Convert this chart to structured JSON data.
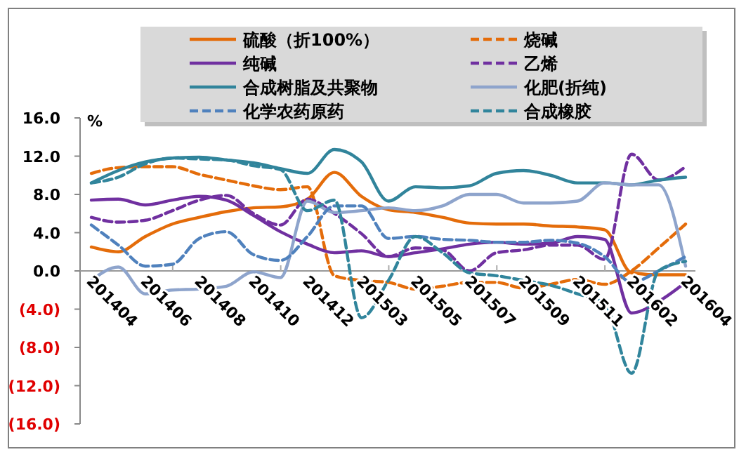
{
  "chart_data": {
    "type": "line",
    "ylabel": "%",
    "categories": [
      "201404",
      null,
      "201406",
      null,
      "201408",
      null,
      "201410",
      null,
      "201412",
      null,
      "201503",
      null,
      "201505",
      null,
      "201507",
      null,
      "201509",
      null,
      "201511",
      null,
      "201602",
      null,
      "201604"
    ],
    "series": [
      {
        "name": "硫酸（折100%）",
        "color": "#e46c0a",
        "line_style": "solid",
        "values": [
          2.5,
          2.0,
          3.6,
          4.9,
          5.6,
          6.2,
          6.6,
          6.7,
          7.5,
          10.3,
          7.8,
          6.4,
          6.1,
          5.6,
          5.0,
          4.9,
          4.9,
          4.7,
          4.6,
          4.3,
          -0.2,
          -0.4,
          -0.4
        ]
      },
      {
        "name": "烧碱",
        "color": "#e46c0a",
        "line_style": "dashed",
        "values": [
          10.2,
          10.8,
          10.9,
          10.9,
          10.1,
          9.5,
          8.9,
          8.5,
          8.8,
          -0.5,
          -1.0,
          -1.2,
          -1.9,
          -1.6,
          -1.2,
          -1.2,
          -1.8,
          -1.4,
          -0.9,
          -1.4,
          0.0,
          2.4,
          4.9
        ]
      },
      {
        "name": "纯碱",
        "color": "#7030a0",
        "line_style": "solid",
        "values": [
          7.4,
          7.5,
          6.9,
          7.4,
          7.8,
          7.4,
          5.8,
          4.1,
          2.8,
          1.9,
          2.1,
          1.5,
          1.9,
          2.3,
          2.8,
          3.0,
          2.8,
          2.9,
          3.6,
          3.3,
          -4.4,
          -3.2,
          -1.2
        ]
      },
      {
        "name": "乙烯",
        "color": "#7030a0",
        "line_style": "dashed",
        "values": [
          5.6,
          5.1,
          5.3,
          6.3,
          7.4,
          7.9,
          6.0,
          4.8,
          7.5,
          6.0,
          3.9,
          1.5,
          2.4,
          2.2,
          0.0,
          1.9,
          2.2,
          2.7,
          2.7,
          1.2,
          12.2,
          9.5,
          10.9
        ]
      },
      {
        "name": "合成树脂及共聚物",
        "color": "#31849b",
        "line_style": "solid",
        "values": [
          9.2,
          10.5,
          11.4,
          11.8,
          11.9,
          11.6,
          11.3,
          10.7,
          10.2,
          12.7,
          11.4,
          7.3,
          8.8,
          8.7,
          8.9,
          10.2,
          10.5,
          10.0,
          9.2,
          9.2,
          9.0,
          9.5,
          9.8
        ]
      },
      {
        "name": "化肥(折纯)",
        "color": "#8ea4cc",
        "line_style": "solid",
        "values": [
          -1.0,
          0.4,
          -2.4,
          -2.0,
          -1.9,
          -1.6,
          -0.1,
          -0.7,
          7.3,
          6.1,
          6.3,
          6.6,
          6.3,
          6.8,
          8.0,
          8.0,
          7.1,
          7.1,
          7.3,
          9.2,
          9.0,
          9.0,
          0.5
        ]
      },
      {
        "name": "化学农药原药",
        "color": "#4f81bd",
        "line_style": "dashed",
        "values": [
          4.8,
          2.7,
          0.5,
          0.7,
          3.4,
          4.1,
          1.7,
          1.1,
          3.6,
          6.8,
          6.8,
          3.4,
          3.6,
          3.3,
          3.2,
          3.0,
          3.0,
          3.2,
          2.9,
          1.5,
          -1.2,
          0.0,
          1.5
        ]
      },
      {
        "name": "合成橡胶",
        "color": "#31859c",
        "line_style": "dashed",
        "values": [
          9.2,
          9.8,
          11.2,
          11.8,
          11.7,
          11.6,
          11.0,
          10.6,
          6.3,
          7.4,
          -4.9,
          -1.0,
          3.6,
          1.9,
          -0.2,
          -0.5,
          -1.0,
          -1.5,
          -2.4,
          -3.4,
          -10.7,
          0.0,
          1.0
        ]
      }
    ],
    "ylim": [
      -16,
      16
    ],
    "yticks": [
      {
        "value": -16,
        "label": "(16.0)"
      },
      {
        "value": -12,
        "label": "(12.0)"
      },
      {
        "value": -8,
        "label": "(8.0)"
      },
      {
        "value": -4,
        "label": "(4.0)"
      },
      {
        "value": 0,
        "label": "0.0"
      },
      {
        "value": 4,
        "label": "4.0"
      },
      {
        "value": 8,
        "label": "8.0"
      },
      {
        "value": 12,
        "label": "12.0"
      },
      {
        "value": 16,
        "label": "16.0"
      }
    ],
    "grid": false,
    "legend": "top",
    "marker": "none"
  }
}
